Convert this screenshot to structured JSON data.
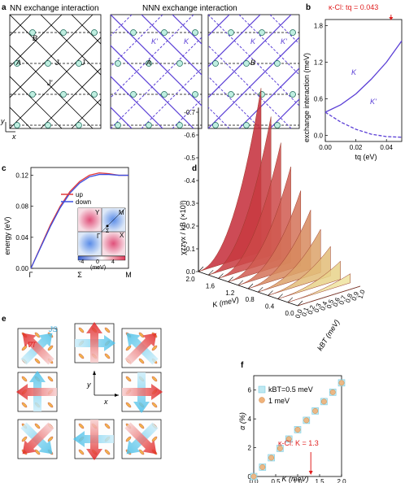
{
  "panel_a": {
    "label": "a",
    "title_nn": "NN exchange interaction",
    "title_nnn": "NNN exchange interaction",
    "site_labels": [
      "B",
      "A",
      "J",
      "J",
      "J'"
    ],
    "nnn_labels_1": [
      "K'",
      "K",
      "A"
    ],
    "nnn_labels_2": [
      "K",
      "K'",
      "B"
    ],
    "axis_x": "x",
    "axis_y": "y"
  },
  "panel_b": {
    "label": "b",
    "annotation": "κ-Cl: tq = 0.043",
    "ylabel": "exchange interaction (meV)",
    "xlabel": "tq (eV)",
    "series_labels": [
      "K",
      "K'"
    ]
  },
  "panel_c": {
    "label": "c",
    "ylabel": "energy (eV)",
    "xticks": [
      "Γ",
      "Σ",
      "M"
    ],
    "legend": [
      "up",
      "down"
    ],
    "inset": {
      "labels": [
        "Y",
        "M",
        "X",
        "Γ",
        "Σ"
      ],
      "cbar_ticks": [
        "-4",
        "0",
        "4"
      ],
      "cbar_unit": "(meV)"
    }
  },
  "panel_d": {
    "label": "d",
    "zlabel": "χzzyx / kB (×10³)",
    "zticks": [
      "-0.7",
      "-0.6",
      "-0.5",
      "-0.4",
      "-0.3",
      "-0.2",
      "-0.1",
      "0.0"
    ],
    "kticks": [
      "2.0",
      "1.6",
      "1.2",
      "0.8",
      "0.4",
      "0.0"
    ],
    "klabel": "K (meV)",
    "tticks": [
      "0.0",
      "0.1",
      "0.2",
      "0.3",
      "0.4",
      "0.5",
      "0.6",
      "0.7",
      "0.8",
      "0.9",
      "1.0"
    ],
    "tlabel": "kBT (meV)"
  },
  "panel_e": {
    "label": "e",
    "js_label": "JS",
    "grad_label": "-∇T",
    "axis_x": "x",
    "axis_y": "y"
  },
  "panel_f": {
    "label": "f",
    "ylabel": "α (%)",
    "xlabel": "K (meV)",
    "legend": [
      "kBT=0.5 meV",
      "1 meV"
    ],
    "annotation": "κ-Cl: K = 1.3"
  },
  "chart_data": [
    {
      "type": "line",
      "panel": "b",
      "xlabel": "tq (eV)",
      "ylabel": "exchange interaction (meV)",
      "xlim": [
        0,
        0.05
      ],
      "ylim": [
        -0.1,
        1.9
      ],
      "xticks": [
        0.0,
        0.02,
        0.04
      ],
      "yticks": [
        0.0,
        0.6,
        1.2,
        1.8
      ],
      "series": [
        {
          "name": "K",
          "style": "solid",
          "x": [
            0,
            0.01,
            0.02,
            0.03,
            0.04,
            0.05
          ],
          "y": [
            0.38,
            0.5,
            0.68,
            0.92,
            1.2,
            1.55
          ]
        },
        {
          "name": "K'",
          "style": "dashed",
          "x": [
            0,
            0.01,
            0.02,
            0.03,
            0.04,
            0.05
          ],
          "y": [
            0.38,
            0.22,
            0.1,
            0.02,
            -0.02,
            -0.03
          ]
        }
      ],
      "marker_x": 0.043
    },
    {
      "type": "line",
      "panel": "c",
      "ylabel": "energy (eV)",
      "ylim": [
        0,
        0.13
      ],
      "yticks": [
        0.0,
        0.04,
        0.08,
        0.12
      ],
      "categories": [
        "Γ",
        "Σ",
        "M"
      ],
      "series": [
        {
          "name": "up",
          "color": "#e23a3a",
          "x": [
            0,
            0.1,
            0.2,
            0.3,
            0.4,
            0.5,
            0.6,
            0.7,
            0.8,
            0.9,
            1.0
          ],
          "y": [
            0.0,
            0.028,
            0.056,
            0.08,
            0.099,
            0.112,
            0.12,
            0.123,
            0.122,
            0.12,
            0.12
          ]
        },
        {
          "name": "down",
          "color": "#3a4fe2",
          "x": [
            0,
            0.1,
            0.2,
            0.3,
            0.4,
            0.5,
            0.6,
            0.7,
            0.8,
            0.9,
            1.0
          ],
          "y": [
            0.0,
            0.027,
            0.054,
            0.078,
            0.097,
            0.11,
            0.118,
            0.121,
            0.121,
            0.12,
            0.12
          ]
        }
      ]
    },
    {
      "type": "area",
      "panel": "d",
      "x_label": "kBT (meV)",
      "z_label": "χzzyx / kB (×10³)",
      "K_values": [
        0.0,
        0.2,
        0.4,
        0.6,
        0.8,
        1.0,
        1.2,
        1.4,
        1.6,
        1.8,
        2.0
      ],
      "T_range": [
        0.0,
        1.0
      ],
      "peak_values": [
        0.0,
        -0.04,
        -0.08,
        -0.13,
        -0.19,
        -0.26,
        -0.33,
        -0.42,
        -0.51,
        -0.61,
        -0.72
      ]
    },
    {
      "type": "scatter",
      "panel": "f",
      "xlabel": "K (meV)",
      "ylabel": "α (%)",
      "xlim": [
        0,
        2.0
      ],
      "ylim": [
        0,
        7
      ],
      "xticks": [
        0.0,
        0.5,
        1.0,
        1.5,
        2.0
      ],
      "yticks": [
        0,
        2,
        4,
        6
      ],
      "series": [
        {
          "name": "kBT=0.5 meV",
          "marker": "square",
          "x": [
            0.0,
            0.2,
            0.4,
            0.6,
            0.8,
            1.0,
            1.2,
            1.4,
            1.6,
            1.8,
            2.0
          ],
          "y": [
            0.0,
            0.65,
            1.3,
            1.95,
            2.6,
            3.25,
            3.9,
            4.55,
            5.2,
            5.85,
            6.5
          ]
        },
        {
          "name": "1 meV",
          "marker": "circle",
          "x": [
            0.0,
            0.2,
            0.4,
            0.6,
            0.8,
            1.0,
            1.2,
            1.4,
            1.6,
            1.8,
            2.0
          ],
          "y": [
            0.0,
            0.65,
            1.3,
            1.95,
            2.6,
            3.25,
            3.9,
            4.55,
            5.2,
            5.85,
            6.5
          ]
        }
      ],
      "marker_x": 1.3
    }
  ]
}
